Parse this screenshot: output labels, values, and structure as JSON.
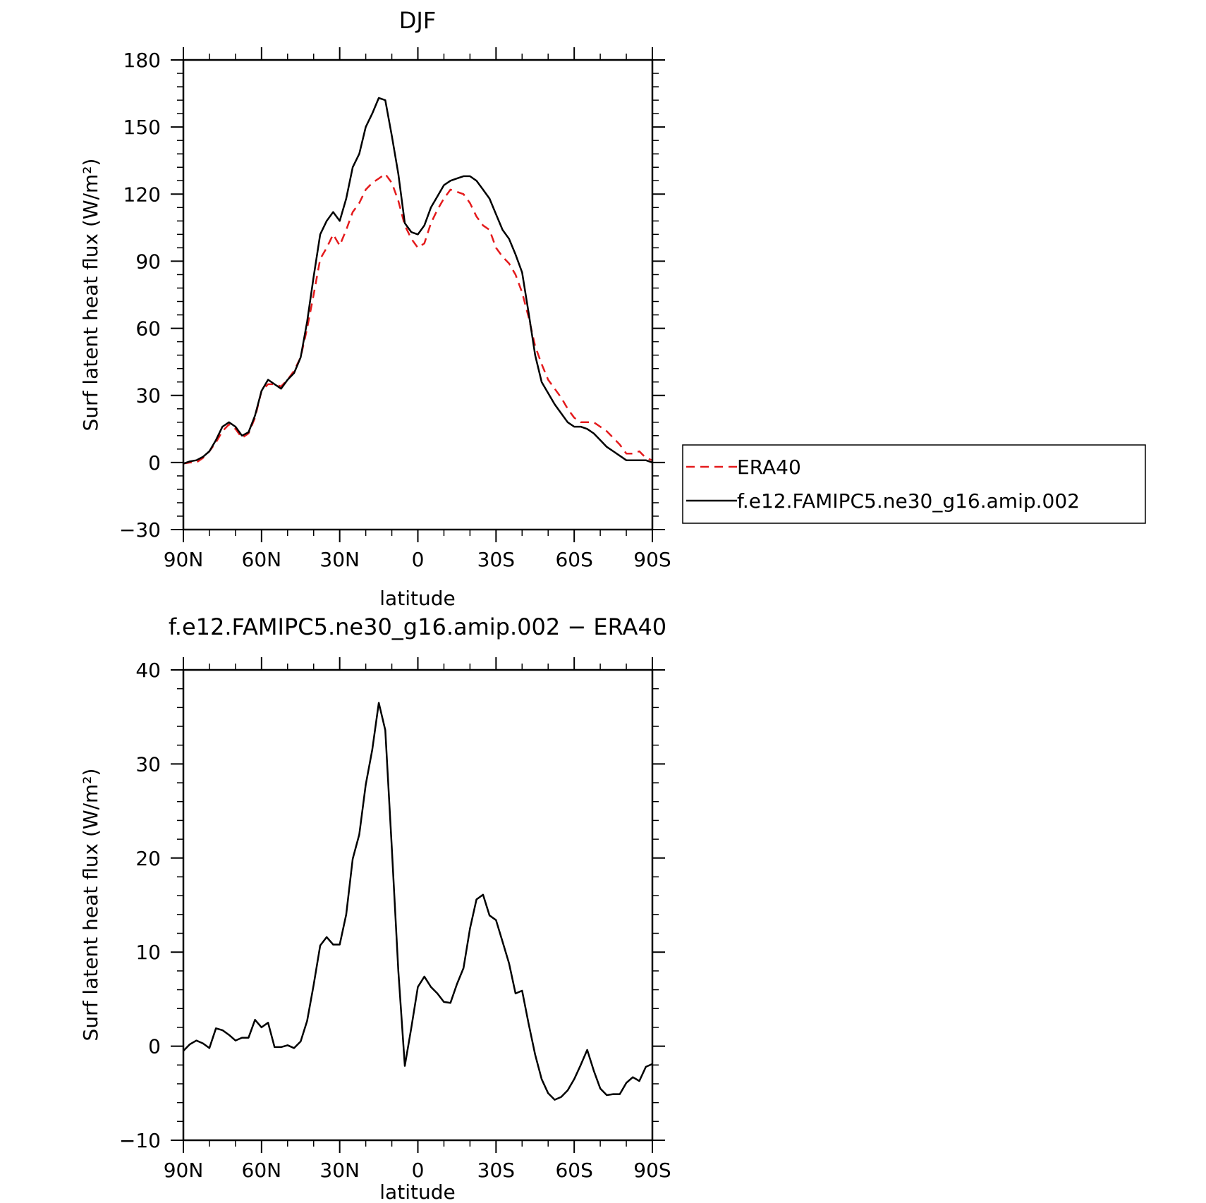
{
  "chart_data": [
    {
      "type": "line",
      "title": "DJF",
      "xlabel": "latitude",
      "ylabel": "Surf latent heat flux (W/m²)",
      "xlim": [
        90,
        -90
      ],
      "ylim": [
        -30,
        180
      ],
      "yticks": [
        -30,
        0,
        30,
        60,
        90,
        120,
        150,
        180
      ],
      "xticks": [
        90,
        60,
        30,
        0,
        -30,
        -60,
        -90
      ],
      "xticklabels": [
        "90N",
        "60N",
        "30N",
        "0",
        "30S",
        "60S",
        "90S"
      ],
      "grid": false,
      "legend": "right",
      "series": [
        {
          "name": "ERA40",
          "color": "#e41a1c",
          "dash": "dashed",
          "x": [
            90,
            87.5,
            85,
            82.5,
            80,
            77.5,
            75,
            72.5,
            70,
            67.5,
            65,
            62.5,
            60,
            57.5,
            55,
            52.5,
            50,
            47.5,
            45,
            42.5,
            40,
            37.5,
            35,
            32.5,
            30,
            27.5,
            25,
            22.5,
            20,
            17.5,
            15,
            12.5,
            10,
            7.5,
            5,
            2.5,
            0,
            -2.5,
            -5,
            -7.5,
            -10,
            -12.5,
            -15,
            -17.5,
            -20,
            -22.5,
            -25,
            -27.5,
            -30,
            -32.5,
            -35,
            -37.5,
            -40,
            -42.5,
            -45,
            -47.5,
            -50,
            -52.5,
            -55,
            -57.5,
            -60,
            -62.5,
            -65,
            -67.5,
            -70,
            -72.5,
            -75,
            -77.5,
            -80,
            -82.5,
            -85,
            -87.5,
            -90
          ],
          "values": [
            -0.5,
            0,
            0,
            2,
            5,
            9,
            14,
            17,
            15,
            11,
            13,
            20,
            32,
            35,
            35,
            34,
            37,
            41,
            47,
            60,
            75,
            91,
            96,
            102,
            97,
            104,
            112,
            116,
            122,
            125,
            127,
            129,
            125,
            117,
            106,
            100,
            96,
            98,
            107,
            113,
            118,
            122,
            121,
            120,
            116,
            110,
            106,
            104,
            96,
            92,
            89,
            84,
            76,
            65,
            52,
            44,
            37,
            33,
            29,
            24,
            20,
            18,
            18,
            18,
            16,
            14,
            11,
            8,
            4,
            4,
            5,
            2,
            1
          ]
        },
        {
          "name": "f.e12.FAMIPC5.ne30_g16.amip.002",
          "color": "#000000",
          "dash": "solid",
          "x": [
            90,
            87.5,
            85,
            82.5,
            80,
            77.5,
            75,
            72.5,
            70,
            67.5,
            65,
            62.5,
            60,
            57.5,
            55,
            52.5,
            50,
            47.5,
            45,
            42.5,
            40,
            37.5,
            35,
            32.5,
            30,
            27.5,
            25,
            22.5,
            20,
            17.5,
            15,
            12.5,
            10,
            7.5,
            5,
            2.5,
            0,
            -2.5,
            -5,
            -7.5,
            -10,
            -12.5,
            -15,
            -17.5,
            -20,
            -22.5,
            -25,
            -27.5,
            -30,
            -32.5,
            -35,
            -37.5,
            -40,
            -42.5,
            -45,
            -47.5,
            -50,
            -52.5,
            -55,
            -57.5,
            -60,
            -62.5,
            -65,
            -67.5,
            -70,
            -72.5,
            -75,
            -77.5,
            -80,
            -82.5,
            -85,
            -87.5,
            -90
          ],
          "values": [
            -0.5,
            0.5,
            1,
            2.5,
            5,
            10,
            16,
            18,
            16,
            12,
            13.5,
            21,
            32,
            37,
            35,
            33,
            37,
            40,
            47,
            63,
            83,
            102,
            108,
            112,
            108,
            118,
            132,
            138,
            150,
            156,
            163,
            162,
            146,
            129,
            107,
            103,
            102,
            106,
            114,
            119,
            124,
            126,
            127,
            128,
            128,
            126,
            122,
            118,
            111,
            104,
            100,
            93,
            85,
            67,
            48,
            36,
            31,
            26,
            22,
            18,
            16,
            16,
            15,
            13,
            10,
            7,
            5,
            3,
            1,
            1,
            1,
            1,
            0
          ]
        }
      ]
    },
    {
      "type": "line",
      "title": "f.e12.FAMIPC5.ne30_g16.amip.002 − ERA40",
      "xlabel": "latitude",
      "ylabel": "Surf latent heat flux (W/m²)",
      "xlim": [
        90,
        -90
      ],
      "ylim": [
        -10,
        40
      ],
      "yticks": [
        -10,
        0,
        10,
        20,
        30,
        40
      ],
      "xticks": [
        90,
        60,
        30,
        0,
        -30,
        -60,
        -90
      ],
      "xticklabels": [
        "90N",
        "60N",
        "30N",
        "0",
        "30S",
        "60S",
        "90S"
      ],
      "grid": false,
      "series": [
        {
          "color": "#000000",
          "dash": "solid",
          "x": [
            90,
            87.5,
            85,
            82.5,
            80,
            77.5,
            75,
            72.5,
            70,
            67.5,
            65,
            62.5,
            60,
            57.5,
            55,
            52.5,
            50,
            47.5,
            45,
            42.5,
            40,
            37.5,
            35,
            32.5,
            30,
            27.5,
            25,
            22.5,
            20,
            17.5,
            15,
            12.5,
            10,
            7.5,
            5,
            2.5,
            0,
            -2.5,
            -5,
            -7.5,
            -10,
            -12.5,
            -15,
            -17.5,
            -20,
            -22.5,
            -25,
            -27.5,
            -30,
            -32.5,
            -35,
            -37.5,
            -40,
            -42.5,
            -45,
            -47.5,
            -50,
            -52.5,
            -55,
            -57.5,
            -60,
            -62.5,
            -65,
            -67.5,
            -70,
            -72.5,
            -75,
            -77.5,
            -80,
            -82.5,
            -85,
            -87.5,
            -90
          ],
          "values": [
            -0.5,
            0.2,
            0.6,
            0.3,
            -0.2,
            1.9,
            1.7,
            1.2,
            0.6,
            0.9,
            0.9,
            2.8,
            2.0,
            2.5,
            -0.1,
            -0.1,
            0.1,
            -0.2,
            0.5,
            2.7,
            6.5,
            10.7,
            11.6,
            10.8,
            10.8,
            14.0,
            19.9,
            22.5,
            27.8,
            31.5,
            36.5,
            33.6,
            21.0,
            8.0,
            -2.1,
            2.0,
            6.3,
            7.4,
            6.3,
            5.6,
            4.7,
            4.6,
            6.6,
            8.3,
            12.5,
            15.6,
            16.1,
            13.9,
            13.4,
            11.1,
            8.8,
            5.6,
            5.9,
            2.4,
            -0.9,
            -3.5,
            -5.0,
            -5.7,
            -5.4,
            -4.7,
            -3.5,
            -2.0,
            -0.4,
            -2.6,
            -4.5,
            -5.2,
            -5.1,
            -5.1,
            -3.9,
            -3.3,
            -3.7,
            -2.2,
            -1.9
          ]
        }
      ]
    }
  ]
}
